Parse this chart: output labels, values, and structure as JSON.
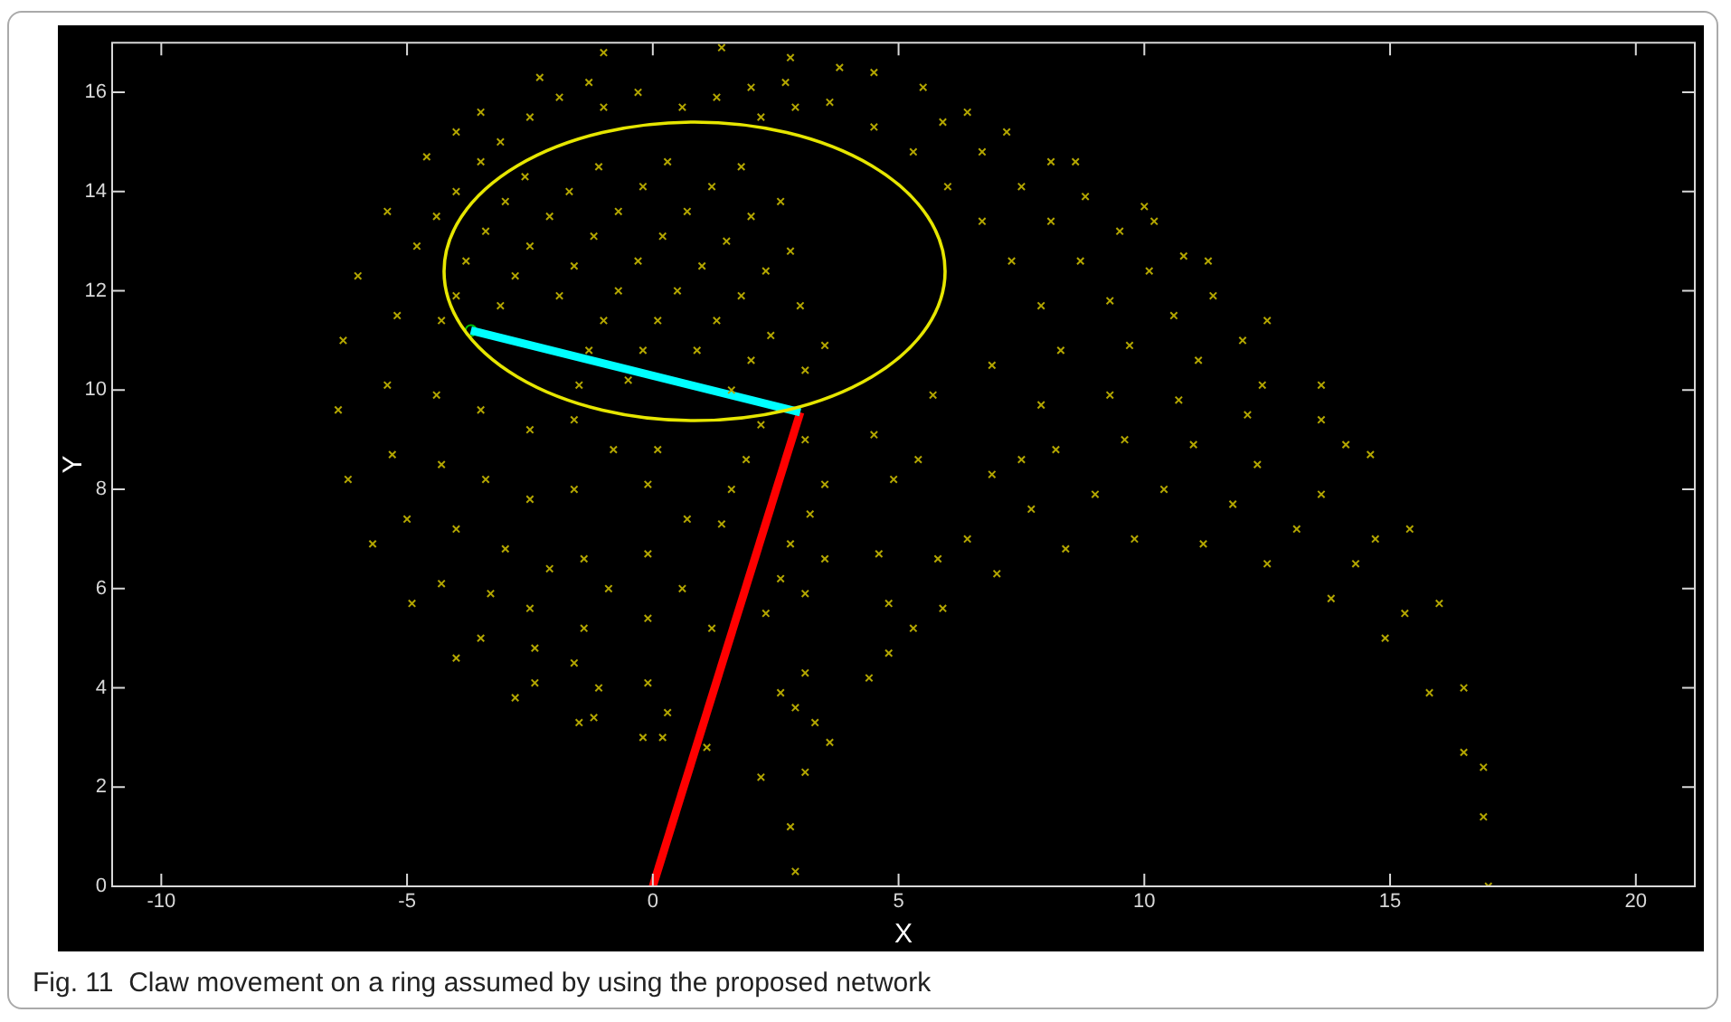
{
  "chart_data": {
    "type": "scatter",
    "xlabel": "X",
    "ylabel": "Y",
    "annotations": [
      "Fig. 11  Claw movement on a ring assumed by using the proposed network"
    ],
    "xlim": [
      -11,
      21.2
    ],
    "ylim": [
      0,
      17
    ],
    "xticks": [
      -10,
      -5,
      0,
      5,
      10,
      15,
      20
    ],
    "yticks": [
      0,
      2,
      4,
      6,
      8,
      10,
      12,
      14,
      16
    ],
    "grid": false,
    "legend": false,
    "series": [
      {
        "type": "scatter",
        "marker": "cross",
        "color": "#b3a600",
        "x": [
          8.4,
          9.8,
          11.2,
          12.5,
          13.8,
          14.9,
          15.8,
          16.5,
          16.9,
          17.0,
          4.5,
          5.5,
          6.4,
          7.2,
          8.6,
          10.0,
          11.3,
          12.5,
          13.6,
          14.6,
          15.4,
          16.0,
          16.5,
          16.9,
          7.7,
          9.0,
          10.4,
          11.8,
          13.1,
          14.3,
          15.3,
          8.2,
          9.6,
          11.0,
          12.3,
          13.6,
          14.7,
          7.9,
          9.3,
          10.7,
          12.1,
          13.6,
          14.1,
          8.3,
          9.7,
          11.1,
          12.4,
          7.9,
          9.3,
          10.6,
          12.0,
          7.3,
          8.7,
          10.1,
          11.4,
          6.7,
          8.1,
          9.5,
          10.8,
          6.0,
          7.5,
          8.8,
          10.2,
          5.3,
          6.7,
          8.1,
          4.5,
          5.9,
          4.5,
          5.7,
          6.9,
          4.9,
          5.4,
          6.9,
          7.5,
          4.6,
          5.8,
          7.0,
          6.4,
          4.8,
          5.9,
          5.3,
          4.8,
          4.4,
          -4.6,
          -5.4,
          -6.0,
          -6.3,
          -6.4,
          -6.2,
          -5.7,
          -4.9,
          -4.0,
          -2.8,
          -1.5,
          -0.2,
          1.1,
          2.2,
          2.8,
          2.9,
          -3.5,
          -2.3,
          -1.0,
          1.4,
          2.8,
          3.8,
          -4.0,
          -4.4,
          -4.8,
          -5.2,
          -5.4,
          -5.3,
          -5.0,
          -4.3,
          -3.5,
          -2.4,
          -1.2,
          0.2,
          -4.4,
          -4.3,
          -4.0,
          -3.3,
          -2.4,
          -1.1,
          0.3,
          -3.5,
          -3.4,
          -3.0,
          -2.5,
          -1.6,
          -0.1,
          -2.5,
          -2.5,
          -2.1,
          -1.4,
          -0.1,
          -1.6,
          -1.4,
          -0.9,
          -0.1,
          -0.1,
          -0.8,
          0.1,
          0.7,
          0.6,
          1.2,
          1.9,
          1.6,
          1.4,
          2.6,
          2.3,
          2.9,
          3.3,
          3.1,
          3.5,
          3.2,
          2.8,
          3.5,
          3.1,
          2.6,
          3.1,
          3.6,
          3.1,
          -1.7,
          -0.2,
          1.2,
          2.6,
          -1.1,
          0.3,
          1.8,
          -0.7,
          0.7,
          2.0,
          -2.1,
          -2.5,
          -1.2,
          0.2,
          1.5,
          2.8,
          -2.8,
          -1.6,
          -0.3,
          1.0,
          2.3,
          -1.9,
          -0.7,
          0.5,
          1.8,
          3.0,
          -1.0,
          0.1,
          1.3,
          2.4,
          3.5,
          -1.3,
          -0.2,
          0.9,
          2.0,
          3.1,
          -1.5,
          -0.5,
          1.6,
          -1.6,
          2.2,
          -3.8,
          -3.4,
          -3.0,
          -2.6,
          -4.0,
          -4.3,
          -3.1,
          -1.3,
          -0.3,
          1.3,
          2.0,
          2.7,
          3.6,
          2.9,
          2.2,
          0.6,
          -1.0,
          -1.9,
          -2.5,
          -3.1,
          -3.5,
          -4.0
        ],
        "values": [
          6.8,
          7.0,
          6.9,
          6.5,
          5.8,
          5.0,
          3.9,
          2.7,
          1.4,
          0,
          16.4,
          16.1,
          15.6,
          15.2,
          14.6,
          13.7,
          12.6,
          11.4,
          10.1,
          8.7,
          7.2,
          5.7,
          4.0,
          2.4,
          7.6,
          7.9,
          8.0,
          7.7,
          7.2,
          6.5,
          5.5,
          8.8,
          9.0,
          8.9,
          8.5,
          7.9,
          7.0,
          9.7,
          9.9,
          9.8,
          9.5,
          9.4,
          8.9,
          10.8,
          10.9,
          10.6,
          10.1,
          11.7,
          11.8,
          11.5,
          11.0,
          12.6,
          12.6,
          12.4,
          11.9,
          13.4,
          13.4,
          13.2,
          12.7,
          14.1,
          14.1,
          13.9,
          13.4,
          14.8,
          14.8,
          14.6,
          15.3,
          15.4,
          9.1,
          9.9,
          10.5,
          8.2,
          8.6,
          8.3,
          8.6,
          6.7,
          6.6,
          6.3,
          7.0,
          5.7,
          5.6,
          5.2,
          4.7,
          4.2,
          14.7,
          13.6,
          12.3,
          11.0,
          9.6,
          8.2,
          6.9,
          5.7,
          4.6,
          3.8,
          3.3,
          3.0,
          2.8,
          2.2,
          1.2,
          0.3,
          15.6,
          16.3,
          16.8,
          16.9,
          16.7,
          16.5,
          15.2,
          13.5,
          12.9,
          11.5,
          10.1,
          8.7,
          7.4,
          6.1,
          5.0,
          4.1,
          3.4,
          3.0,
          9.9,
          8.5,
          7.2,
          5.9,
          4.8,
          4.0,
          3.5,
          9.6,
          8.2,
          6.8,
          5.6,
          4.5,
          4.1,
          9.2,
          7.8,
          6.4,
          5.2,
          5.4,
          8.0,
          6.6,
          6.0,
          6.7,
          8.1,
          8.8,
          8.8,
          7.4,
          6.0,
          5.2,
          8.6,
          8.0,
          7.3,
          6.2,
          5.5,
          3.6,
          3.3,
          9.0,
          8.1,
          7.5,
          6.9,
          6.6,
          5.9,
          3.9,
          4.3,
          2.9,
          2.3,
          14.0,
          14.1,
          14.1,
          13.8,
          14.5,
          14.6,
          14.5,
          13.6,
          13.6,
          13.5,
          13.5,
          12.9,
          13.1,
          13.1,
          13.0,
          12.8,
          12.3,
          12.5,
          12.6,
          12.5,
          12.4,
          11.9,
          12.0,
          12.0,
          11.9,
          11.7,
          11.4,
          11.4,
          11.4,
          11.1,
          10.9,
          10.8,
          10.8,
          10.8,
          10.6,
          10.4,
          10.1,
          10.2,
          10.0,
          9.4,
          9.3,
          12.6,
          13.2,
          13.8,
          14.3,
          11.9,
          11.4,
          11.7,
          16.2,
          16.0,
          15.9,
          16.1,
          16.2,
          15.8,
          15.7,
          15.5,
          15.7,
          15.7,
          15.9,
          15.5,
          15.0,
          14.6,
          14.0
        ]
      },
      {
        "type": "line",
        "marker": "none",
        "line_style": "solid",
        "color": "#00ffff",
        "x": [
          -3.7,
          3.0
        ],
        "values": [
          11.2,
          9.55
        ]
      },
      {
        "type": "line",
        "marker": "none",
        "line_style": "solid",
        "color": "#ff0000",
        "x": [
          0,
          3.0
        ],
        "values": [
          0,
          9.55
        ]
      },
      {
        "type": "scatter",
        "marker": "circle",
        "color": "#00c000",
        "x": [
          -3.7
        ],
        "values": [
          11.2
        ]
      }
    ]
  }
}
